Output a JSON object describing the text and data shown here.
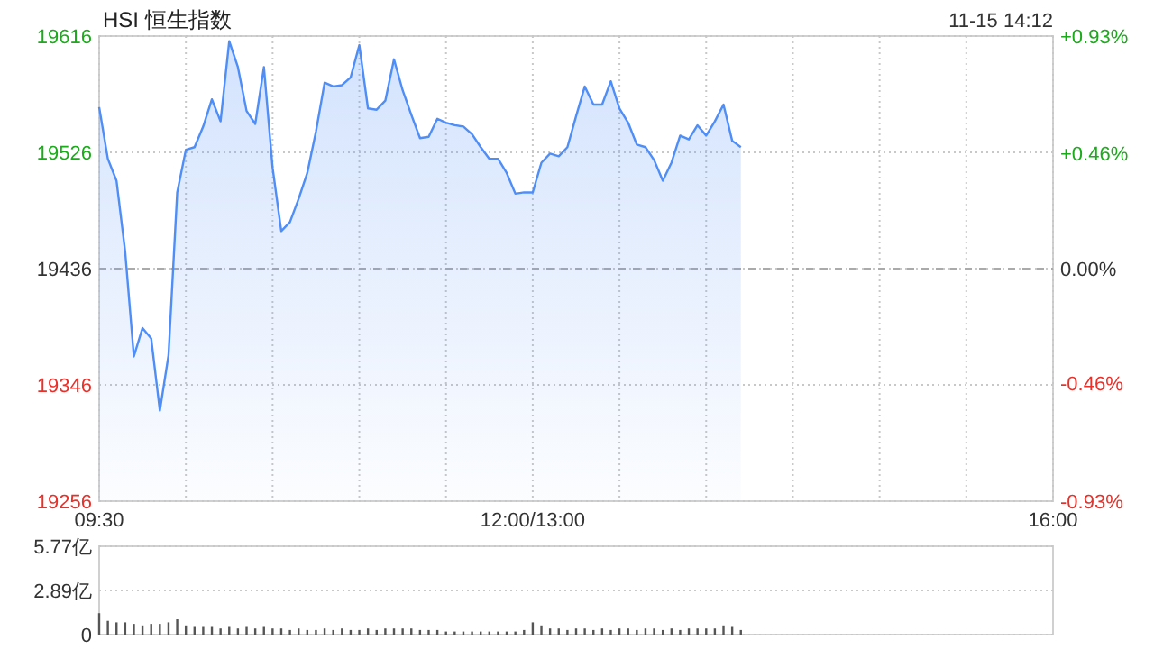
{
  "chart_data": [
    {
      "type": "area",
      "title": "HSI 恒生指数",
      "annotations": [
        "11-15 14:12"
      ],
      "categories": [
        "09:30",
        null,
        null,
        null,
        null,
        null,
        null,
        null,
        null,
        null,
        null,
        null,
        null,
        null,
        null,
        null,
        null,
        null,
        null,
        null,
        null,
        null,
        null,
        null,
        null,
        null,
        null,
        null,
        null,
        null,
        null,
        null,
        null,
        null,
        null,
        null,
        null,
        null,
        null,
        null,
        null,
        null,
        null,
        null,
        null,
        null,
        null,
        null,
        null,
        null,
        "12:00/13:00",
        null,
        null,
        null,
        null,
        null,
        null,
        null,
        null,
        null,
        null,
        null,
        null,
        null,
        null,
        null,
        null,
        null,
        null,
        null,
        null,
        null,
        null,
        null,
        null,
        null,
        null,
        null,
        null,
        null,
        null,
        null,
        null,
        null,
        null,
        null,
        null,
        null,
        null,
        null,
        null,
        null,
        null,
        null,
        null,
        null,
        null,
        null,
        null,
        null,
        null,
        null,
        null,
        null,
        null,
        null,
        null,
        null,
        null,
        null,
        "16:00"
      ],
      "series": [
        {
          "color": "#4f8ef7",
          "values": [
            19561,
            19521,
            19504,
            19449,
            19368,
            19390,
            19382,
            19326,
            19369,
            19495,
            19528,
            19530,
            19546,
            19567,
            19550,
            19612,
            19592,
            19558,
            19548,
            19592,
            19514,
            19465,
            19472,
            19490,
            19510,
            19542,
            19580,
            19577,
            19578,
            19584,
            19609,
            19560,
            19559,
            19566,
            19598,
            19574,
            19555,
            19537,
            19538,
            19552,
            19549,
            19547,
            19546,
            19540,
            19530,
            19521,
            19521,
            19510,
            19494,
            19495,
            19495,
            19518,
            19525,
            19523,
            19530,
            19554,
            19577,
            19563,
            19563,
            19581,
            19560,
            19549,
            19532,
            19530,
            19520,
            19504,
            19518,
            19539,
            19536,
            19547,
            19539,
            19550,
            19563,
            19535,
            19530,
            null,
            null,
            null,
            null,
            null,
            null,
            null,
            null,
            null,
            null,
            null,
            null,
            null,
            null,
            null,
            null,
            null,
            null,
            null,
            null,
            null,
            null,
            null,
            null,
            null,
            null,
            null,
            null,
            null,
            null,
            null,
            null,
            null,
            null,
            null,
            null
          ]
        }
      ],
      "ylim": [
        19256,
        19616
      ],
      "yticks": [
        19256,
        19346,
        19436,
        19526,
        19616
      ],
      "y2lim": [
        -0.93,
        0.93
      ],
      "y2ticks": [
        {
          "value": -0.93,
          "label": "-0.93%"
        },
        {
          "value": -0.46,
          "label": "-0.46%"
        },
        {
          "value": 0,
          "label": "0.00%"
        },
        {
          "value": 0.46,
          "label": "+0.46%"
        },
        {
          "value": 0.93,
          "label": "+0.93%"
        }
      ],
      "ref_lines": [
        {
          "axis": "y",
          "value": 19436,
          "line_style": "dashed",
          "color": "#aaaaaa"
        }
      ],
      "grid": true
    },
    {
      "type": "bar",
      "categories": [
        null,
        null,
        null,
        null,
        null,
        null,
        null,
        null,
        null,
        null,
        null,
        null,
        null,
        null,
        null,
        null,
        null,
        null,
        null,
        null,
        null,
        null,
        null,
        null,
        null,
        null,
        null,
        null,
        null,
        null,
        null,
        null,
        null,
        null,
        null,
        null,
        null,
        null,
        null,
        null,
        null,
        null,
        null,
        null,
        null,
        null,
        null,
        null,
        null,
        null,
        null,
        null,
        null,
        null,
        null,
        null,
        null,
        null,
        null,
        null,
        null,
        null,
        null,
        null,
        null,
        null,
        null,
        null,
        null,
        null,
        null,
        null,
        null,
        null,
        null,
        null,
        null,
        null,
        null,
        null,
        null,
        null,
        null,
        null,
        null,
        null,
        null,
        null,
        null,
        null,
        null,
        null,
        null,
        null,
        null,
        null,
        null,
        null,
        null,
        null,
        null,
        null,
        null,
        null,
        null,
        null,
        null,
        null,
        null,
        null,
        null
      ],
      "values": [
        1.4,
        0.9,
        0.8,
        0.8,
        0.7,
        0.6,
        0.7,
        0.7,
        0.8,
        1.0,
        0.6,
        0.5,
        0.5,
        0.5,
        0.4,
        0.5,
        0.4,
        0.5,
        0.4,
        0.5,
        0.4,
        0.4,
        0.3,
        0.4,
        0.3,
        0.3,
        0.4,
        0.3,
        0.4,
        0.3,
        0.3,
        0.4,
        0.3,
        0.4,
        0.4,
        0.4,
        0.4,
        0.3,
        0.3,
        0.3,
        0.2,
        0.2,
        0.2,
        0.2,
        0.2,
        0.2,
        0.2,
        0.2,
        0.2,
        0.3,
        0.8,
        0.6,
        0.4,
        0.4,
        0.3,
        0.4,
        0.4,
        0.3,
        0.4,
        0.3,
        0.4,
        0.4,
        0.3,
        0.4,
        0.4,
        0.3,
        0.4,
        0.3,
        0.4,
        0.4,
        0.4,
        0.4,
        0.6,
        0.5,
        0.3,
        null,
        null,
        null,
        null,
        null,
        null,
        null,
        null,
        null,
        null,
        null,
        null,
        null,
        null,
        null,
        null,
        null,
        null,
        null,
        null,
        null,
        null,
        null,
        null,
        null,
        null,
        null,
        null,
        null,
        null,
        null,
        null,
        null,
        null,
        null,
        null
      ],
      "color": "#555555",
      "ylim": [
        0,
        5.77
      ],
      "yticks": [
        {
          "value": 0,
          "label": "0"
        },
        {
          "value": 2.89,
          "label": "2.89亿"
        },
        {
          "value": 5.77,
          "label": "5.77亿"
        }
      ],
      "grid": "y",
      "tick_labels": "y"
    }
  ]
}
